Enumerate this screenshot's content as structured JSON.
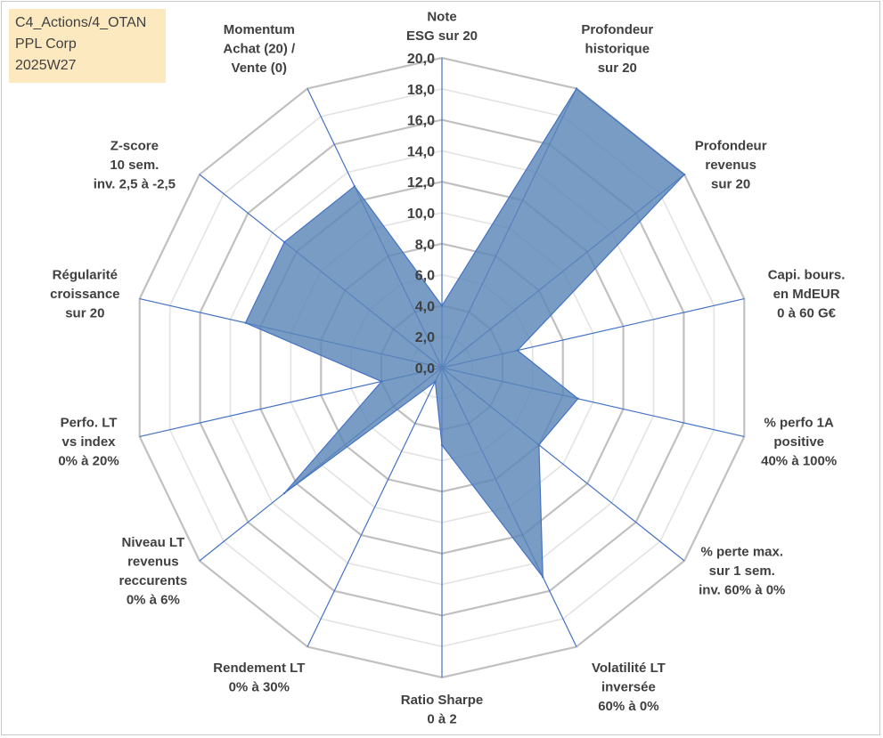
{
  "info": {
    "line1": "C4_Actions/4_OTAN",
    "line2": "PPL Corp",
    "line3": "2025W27"
  },
  "chart_data": {
    "type": "radar",
    "rmin": 0,
    "rmax": 20,
    "tick_step": 2,
    "tick_labels": [
      "0,0",
      "2,0",
      "4,0",
      "6,0",
      "8,0",
      "10,0",
      "12,0",
      "14,0",
      "16,0",
      "18,0",
      "20,0"
    ],
    "axes": [
      [
        "Note",
        "ESG sur 20"
      ],
      [
        "Profondeur",
        "historique",
        "sur 20"
      ],
      [
        "Profondeur",
        "revenus",
        "sur 20"
      ],
      [
        "Capi. bours.",
        "en MdEUR",
        "0 à 60 G€"
      ],
      [
        "% perfo 1A",
        "positive",
        "40% à 100%"
      ],
      [
        "% perte max.",
        "sur 1 sem.",
        "inv. 60% à 0%"
      ],
      [
        "Volatilité LT",
        "inversée",
        "60% à 0%"
      ],
      [
        "Ratio Sharpe",
        "0 à 2"
      ],
      [
        "Rendement LT",
        "0% à 30%"
      ],
      [
        "Niveau LT",
        "revenus",
        "reccurents",
        "0% à 6%"
      ],
      [
        "Perfo. LT",
        "vs index",
        "0% à 20%"
      ],
      [
        "Régularité",
        "croissance",
        "sur 20"
      ],
      [
        "Z-score",
        "10 sem.",
        "inv. 2,5 à -2,5"
      ],
      [
        "Momentum",
        "Achat (20) /",
        "Vente (0)"
      ]
    ],
    "series": [
      {
        "values": [
          4.0,
          20.0,
          20.0,
          5.0,
          9.0,
          8.0,
          15.0,
          5.0,
          1.0,
          13.0,
          4.0,
          13.0,
          13.0,
          13.0
        ]
      }
    ],
    "colors": {
      "fill": "#5b86b8",
      "stroke": "#4472c4",
      "spoke": "#4472c4",
      "grid_major": "#c0c0c0",
      "grid_minor": "#e3e3e3"
    },
    "grid": true
  }
}
